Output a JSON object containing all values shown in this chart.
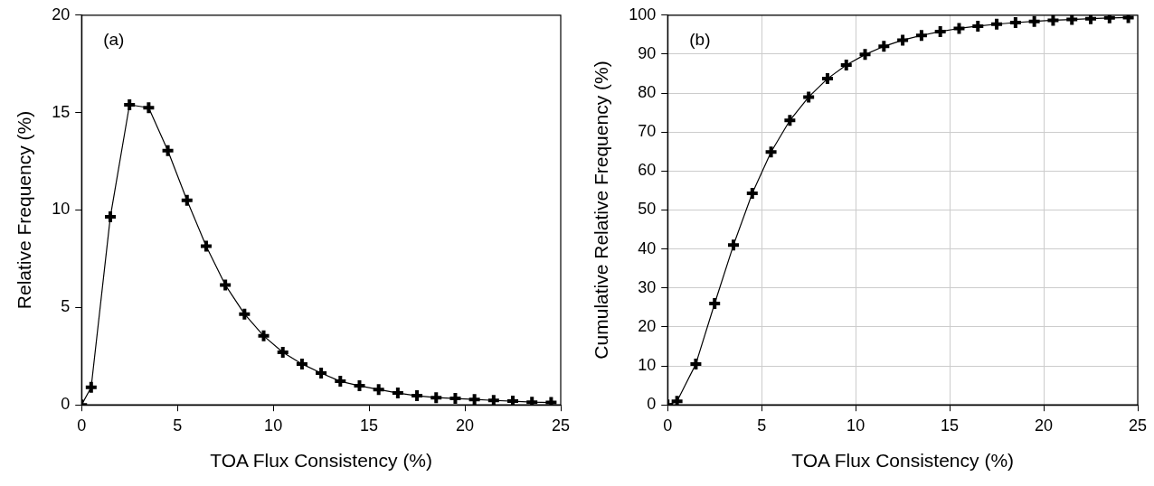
{
  "chart_data": [
    {
      "type": "line",
      "xlabel": "TOA Flux Consistency (%)",
      "ylabel": "Relative Frequency (%)",
      "annotations": [
        "(a)"
      ],
      "x": [
        0,
        0.5,
        1.5,
        2.5,
        3.5,
        4.5,
        5.5,
        6.5,
        7.5,
        8.5,
        9.5,
        10.5,
        11.5,
        12.5,
        13.5,
        14.5,
        15.5,
        16.5,
        17.5,
        18.5,
        19.5,
        20.5,
        21.5,
        22.5,
        23.5,
        24.5
      ],
      "series": [
        {
          "color": "#000000",
          "values": [
            0,
            0.9,
            9.65,
            15.4,
            15.25,
            13.05,
            10.5,
            8.15,
            6.15,
            4.66,
            3.54,
            2.7,
            2.1,
            1.63,
            1.21,
            0.98,
            0.79,
            0.61,
            0.47,
            0.37,
            0.33,
            0.28,
            0.23,
            0.19,
            0.14,
            0.12
          ]
        }
      ],
      "xlim": [
        0,
        25
      ],
      "xticks": [
        0,
        5,
        10,
        15,
        20,
        25
      ],
      "ylim": [
        0,
        20
      ],
      "yticks": [
        0,
        5,
        10,
        15,
        20
      ],
      "grid": false,
      "legend": false,
      "marker": "cross",
      "line_style": "solid"
    },
    {
      "type": "line",
      "xlabel": "TOA Flux Consistency (%)",
      "ylabel": "Cumulative Relative Frequency (%)",
      "annotations": [
        "(b)"
      ],
      "x": [
        0,
        0.5,
        1.5,
        2.5,
        3.5,
        4.5,
        5.5,
        6.5,
        7.5,
        8.5,
        9.5,
        10.5,
        11.5,
        12.5,
        13.5,
        14.5,
        15.5,
        16.5,
        17.5,
        18.5,
        19.5,
        20.5,
        21.5,
        22.5,
        23.5,
        24.5
      ],
      "series": [
        {
          "color": "#000000",
          "values": [
            0,
            0.9,
            10.5,
            26,
            41,
            54.3,
            64.9,
            73,
            79,
            83.7,
            87.2,
            89.9,
            92,
            93.6,
            94.8,
            95.8,
            96.6,
            97.2,
            97.7,
            98.1,
            98.4,
            98.7,
            98.9,
            99.1,
            99.3,
            99.4
          ]
        }
      ],
      "xlim": [
        0,
        25
      ],
      "xticks": [
        0,
        5,
        10,
        15,
        20,
        25
      ],
      "ylim": [
        0,
        100
      ],
      "yticks": [
        0,
        10,
        20,
        30,
        40,
        50,
        60,
        70,
        80,
        90,
        100
      ],
      "grid": true,
      "legend": false,
      "marker": "cross",
      "line_style": "solid"
    }
  ]
}
